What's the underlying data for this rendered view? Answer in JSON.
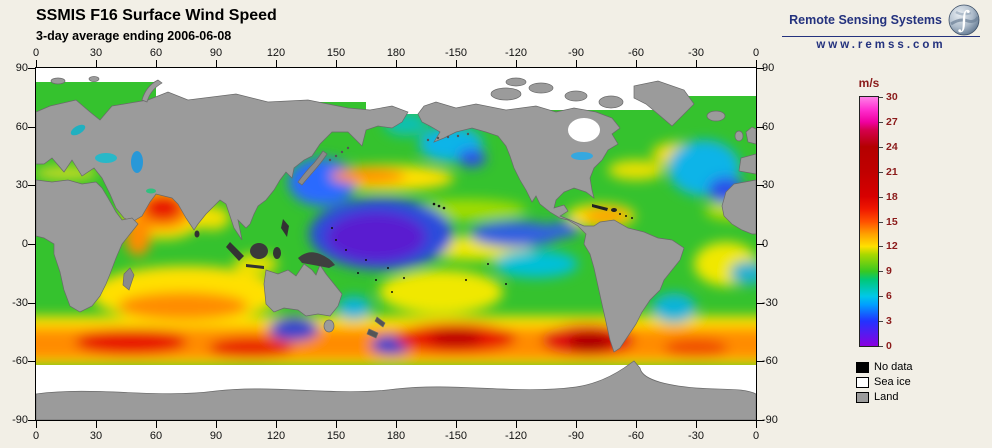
{
  "header": {
    "title": "SSMIS F16 Surface Wind Speed",
    "subtitle": "3-day average ending 2006-06-08"
  },
  "brand": {
    "name": "Remote Sensing Systems",
    "url": "www.remss.com",
    "logo": "globe-integral-icon"
  },
  "axes": {
    "longitude": {
      "ticks": [
        "0",
        "30",
        "60",
        "90",
        "120",
        "150",
        "180",
        "-150",
        "-120",
        "-90",
        "-60",
        "-30",
        "0"
      ]
    },
    "latitude": {
      "ticks": [
        "90",
        "60",
        "30",
        "0",
        "-30",
        "-60",
        "-90"
      ]
    }
  },
  "colorbar": {
    "unit": "m/s",
    "min": 0,
    "max": 30,
    "tick_values": [
      0,
      3,
      6,
      9,
      12,
      15,
      18,
      21,
      24,
      27,
      30
    ],
    "stops": [
      {
        "value": 0,
        "color": "#8a00e0"
      },
      {
        "value": 3,
        "color": "#2233ff"
      },
      {
        "value": 5,
        "color": "#00a0ff"
      },
      {
        "value": 6,
        "color": "#00c8e8"
      },
      {
        "value": 8,
        "color": "#00c878"
      },
      {
        "value": 9,
        "color": "#38c822"
      },
      {
        "value": 11,
        "color": "#a8d800"
      },
      {
        "value": 12,
        "color": "#ffe000"
      },
      {
        "value": 13.5,
        "color": "#ffa000"
      },
      {
        "value": 15,
        "color": "#ff5000"
      },
      {
        "value": 16.5,
        "color": "#f01800"
      },
      {
        "value": 18,
        "color": "#d80000"
      },
      {
        "value": 21,
        "color": "#c00000"
      },
      {
        "value": 24,
        "color": "#b40000"
      },
      {
        "value": 26,
        "color": "#d4004c"
      },
      {
        "value": 27,
        "color": "#f000a0"
      },
      {
        "value": 28.5,
        "color": "#ff30d0"
      },
      {
        "value": 30,
        "color": "#ff80e8"
      }
    ]
  },
  "legend": {
    "items": [
      {
        "label": "No data",
        "color": "#000000"
      },
      {
        "label": "Sea ice",
        "color": "#ffffff"
      },
      {
        "label": "Land",
        "color": "#9b9b9b"
      }
    ]
  },
  "chart_data": {
    "type": "heatmap",
    "title": "SSMIS F16 Surface Wind Speed",
    "subtitle": "3-day average ending 2006-06-08",
    "variable": "surface wind speed",
    "units": "m/s",
    "scale_range": [
      0,
      30
    ],
    "colorbar_ticks": [
      0,
      3,
      6,
      9,
      12,
      15,
      18,
      21,
      24,
      27,
      30
    ],
    "x_axis": {
      "name": "longitude_deg",
      "ticks": [
        0,
        30,
        60,
        90,
        120,
        150,
        180,
        -150,
        -120,
        -90,
        -60,
        -30,
        0
      ]
    },
    "y_axis": {
      "name": "latitude_deg",
      "ticks": [
        90,
        60,
        30,
        0,
        -30,
        -60,
        -90
      ]
    },
    "legend": [
      "No data",
      "Sea ice",
      "Land"
    ],
    "notable_features": [
      "High winds 15-25 m/s (red) in the Southern Ocean storm track between 40S and 60S",
      "Strong monsoon winds ~15-20 m/s (red) in the Arabian Sea",
      "Very low winds 0-5 m/s (purple/blue) over the western tropical Pacific warm pool",
      "Moderate 6-12 m/s winds (green/yellow) over most trade-wind oceans",
      "White sea-ice band fringing Antarctica and the Arctic; land shown gray"
    ]
  }
}
